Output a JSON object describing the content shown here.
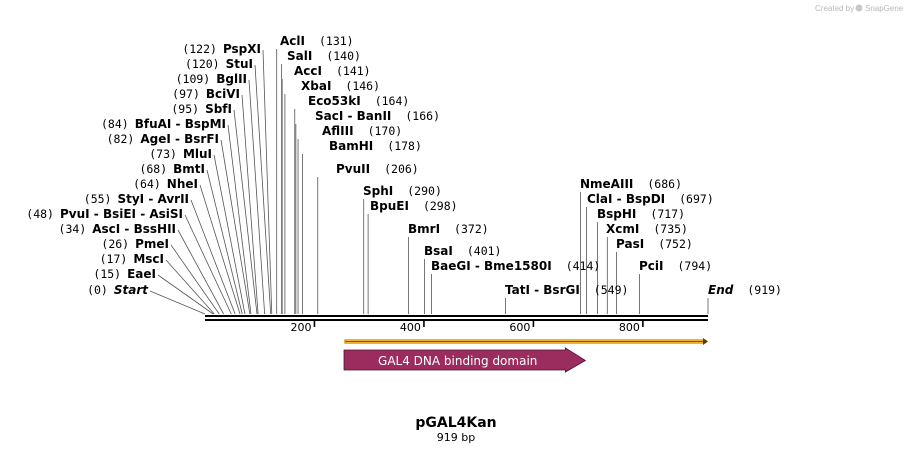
{
  "credit": {
    "text": "Created by",
    "brand": "SnapGene"
  },
  "plasmid": {
    "name": "pGAL4Kan",
    "length_label": "919 bp",
    "length": 919
  },
  "axis": {
    "ticks": [
      200,
      400,
      600,
      800
    ]
  },
  "colors": {
    "feature": "#9b2c5e",
    "orf": "#f0b030",
    "backbone": "#000000",
    "credit": "#b8b8b8"
  },
  "labels": [
    {
      "text": "Start",
      "pos": "(0)",
      "bp": 0,
      "italic": true
    },
    {
      "text": "EaeI",
      "pos": "(15)",
      "bp": 15
    },
    {
      "text": "MscI",
      "pos": "(17)",
      "bp": 17
    },
    {
      "text": "PmeI",
      "pos": "(26)",
      "bp": 26
    },
    {
      "text": "AscI  -  BssHII",
      "pos": "(34)",
      "bp": 34
    },
    {
      "text": "PvuI  -  BsiEI  -  AsiSI",
      "pos": "(48)",
      "bp": 48
    },
    {
      "text": "StyI  -  AvrII",
      "pos": "(55)",
      "bp": 55
    },
    {
      "text": "NheI",
      "pos": "(64)",
      "bp": 64
    },
    {
      "text": "BmtI",
      "pos": "(68)",
      "bp": 68
    },
    {
      "text": "MluI",
      "pos": "(73)",
      "bp": 73
    },
    {
      "text": "AgeI  -  BsrFI",
      "pos": "(82)",
      "bp": 82
    },
    {
      "text": "BfuAI  -  BspMI",
      "pos": "(84)",
      "bp": 84
    },
    {
      "text": "SbfI",
      "pos": "(95)",
      "bp": 95
    },
    {
      "text": "BciVI",
      "pos": "(97)",
      "bp": 97
    },
    {
      "text": "BglII",
      "pos": "(109)",
      "bp": 109
    },
    {
      "text": "StuI",
      "pos": "(120)",
      "bp": 120
    },
    {
      "text": "PspXI",
      "pos": "(122)",
      "bp": 122
    },
    {
      "text": "AclI",
      "pos": "(131)",
      "bp": 131
    },
    {
      "text": "SalI",
      "pos": "(140)",
      "bp": 140
    },
    {
      "text": "AccI",
      "pos": "(141)",
      "bp": 141
    },
    {
      "text": "XbaI",
      "pos": "(146)",
      "bp": 146
    },
    {
      "text": "Eco53kI",
      "pos": "(164)",
      "bp": 164
    },
    {
      "text": "SacI  -  BanII",
      "pos": "(166)",
      "bp": 166
    },
    {
      "text": "AflIII",
      "pos": "(170)",
      "bp": 170
    },
    {
      "text": "BamHI",
      "pos": "(178)",
      "bp": 178
    },
    {
      "text": "PvuII",
      "pos": "(206)",
      "bp": 206
    },
    {
      "text": "SphI",
      "pos": "(290)",
      "bp": 290
    },
    {
      "text": "BpuEI",
      "pos": "(298)",
      "bp": 298
    },
    {
      "text": "BmrI",
      "pos": "(372)",
      "bp": 372
    },
    {
      "text": "BsaI",
      "pos": "(401)",
      "bp": 401
    },
    {
      "text": "BaeGI  -  Bme1580I",
      "pos": "(414)",
      "bp": 414
    },
    {
      "text": "TatI  -  BsrGI",
      "pos": "(549)",
      "bp": 549
    },
    {
      "text": "NmeAIII",
      "pos": "(686)",
      "bp": 686
    },
    {
      "text": "ClaI  -  BspDI",
      "pos": "(697)",
      "bp": 697
    },
    {
      "text": "BspHI",
      "pos": "(717)",
      "bp": 717
    },
    {
      "text": "XcmI",
      "pos": "(735)",
      "bp": 735
    },
    {
      "text": "PasI",
      "pos": "(752)",
      "bp": 752
    },
    {
      "text": "PciI",
      "pos": "(794)",
      "bp": 794
    },
    {
      "text": "End",
      "pos": "(919)",
      "bp": 919,
      "italic": true
    }
  ],
  "features": [
    {
      "name": "GAL4 DNA binding domain",
      "start": 254,
      "end": 695,
      "direction": "forward"
    }
  ],
  "orf": {
    "start": 254,
    "end": 919
  }
}
